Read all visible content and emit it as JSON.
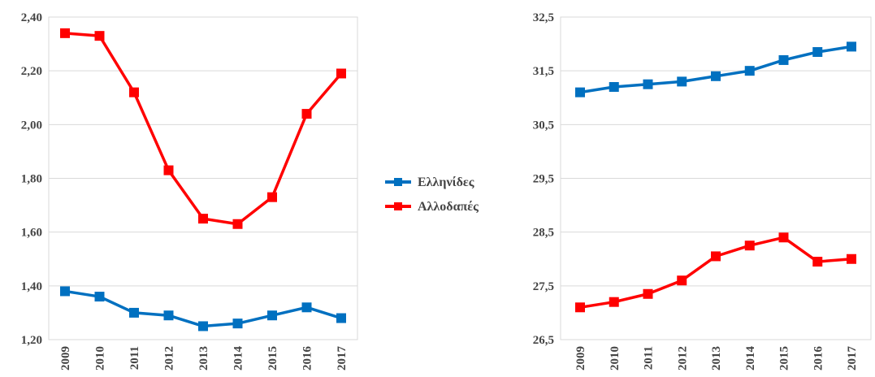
{
  "legend": {
    "items": [
      {
        "label": "Ελληνίδες",
        "color": "#0070C0"
      },
      {
        "label": "Αλλοδαπές",
        "color": "#FF0000"
      }
    ]
  },
  "chart_data": [
    {
      "type": "line",
      "title": "",
      "xlabel": "",
      "ylabel": "",
      "categories": [
        "2009",
        "2010",
        "2011",
        "2012",
        "2013",
        "2014",
        "2015",
        "2016",
        "2017"
      ],
      "ylim": [
        1.2,
        2.4
      ],
      "yticks": [
        1.2,
        1.4,
        1.6,
        1.8,
        2.0,
        2.2,
        2.4
      ],
      "ytick_labels": [
        "1,20",
        "1,40",
        "1,60",
        "1,80",
        "2,00",
        "2,20",
        "2,40"
      ],
      "grid": true,
      "series": [
        {
          "name": "Ελληνίδες",
          "color": "#0070C0",
          "values": [
            1.38,
            1.36,
            1.3,
            1.29,
            1.25,
            1.26,
            1.29,
            1.32,
            1.28
          ]
        },
        {
          "name": "Αλλοδαπές",
          "color": "#FF0000",
          "values": [
            2.34,
            2.33,
            2.12,
            1.83,
            1.65,
            1.63,
            1.73,
            2.04,
            2.19
          ]
        }
      ]
    },
    {
      "type": "line",
      "title": "",
      "xlabel": "",
      "ylabel": "",
      "categories": [
        "2009",
        "2010",
        "2011",
        "2012",
        "2013",
        "2014",
        "2015",
        "2016",
        "2017"
      ],
      "ylim": [
        26.5,
        32.5
      ],
      "yticks": [
        26.5,
        27.5,
        28.5,
        29.5,
        30.5,
        31.5,
        32.5
      ],
      "ytick_labels": [
        "26,5",
        "27,5",
        "28,5",
        "29,5",
        "30,5",
        "31,5",
        "32,5"
      ],
      "grid": true,
      "series": [
        {
          "name": "Ελληνίδες",
          "color": "#0070C0",
          "values": [
            31.1,
            31.2,
            31.25,
            31.3,
            31.4,
            31.5,
            31.7,
            31.85,
            31.95
          ]
        },
        {
          "name": "Αλλοδαπές",
          "color": "#FF0000",
          "values": [
            27.1,
            27.2,
            27.35,
            27.6,
            28.05,
            28.25,
            28.4,
            27.95,
            28.0
          ]
        }
      ]
    }
  ]
}
